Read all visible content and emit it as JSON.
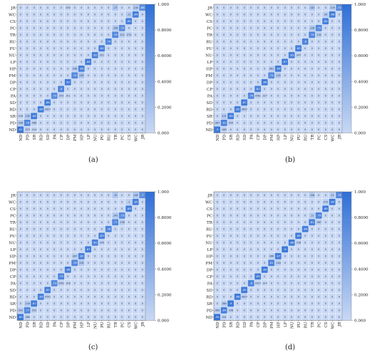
{
  "labels": [
    "ND",
    "PD",
    "SR",
    "RD",
    "SD",
    "PA",
    "CP",
    "DP",
    "PM",
    "HP",
    "LP",
    "NU",
    "PU",
    "RU",
    "TR",
    "PC",
    "CS",
    "WC",
    "JR"
  ],
  "colorbar_ticks": [
    "0.000",
    "0.2000",
    "0.4000",
    "0.6000",
    "0.8000",
    "1.000"
  ],
  "colors": {
    "low": "#c8d8f4",
    "high": "#2f6fd6"
  },
  "captions": [
    "(a)",
    "(b)",
    "(c)",
    "(d)"
  ],
  "chart_data": [
    {
      "type": "heatmap",
      "title": "",
      "xlabel": "",
      "ylabel": "",
      "vlim": [
        0,
        1
      ],
      "diagonal": [
        0.91,
        0.78,
        0.88,
        0.84,
        0.86,
        0.72,
        0.8,
        0.87,
        0.75,
        0.83,
        0.88,
        0.82,
        0.84,
        0.79,
        0.76,
        0.72,
        0.85,
        0.84,
        0.68
      ],
      "off_diagonal": [
        {
          "row": "ND",
          "col": "PD",
          "value": 0.073
        },
        {
          "row": "ND",
          "col": "SR",
          "value": 0.014
        },
        {
          "row": "PD",
          "col": "ND",
          "value": 0.098
        },
        {
          "row": "PD",
          "col": "SR",
          "value": 0.066
        },
        {
          "row": "SR",
          "col": "PD",
          "value": 0.128
        },
        {
          "row": "SR",
          "col": "ND",
          "value": 0.018
        },
        {
          "row": "RD",
          "col": "SD",
          "value": 0.0627
        },
        {
          "row": "PA",
          "col": "CP",
          "value": 0.053
        },
        {
          "row": "PA",
          "col": "DP",
          "value": 0.011
        },
        {
          "row": "PM",
          "col": "HP",
          "value": 0.167
        },
        {
          "row": "HP",
          "col": "PM",
          "value": 0.096
        },
        {
          "row": "NU",
          "col": "PU",
          "value": 0.051
        },
        {
          "row": "TR",
          "col": "CS",
          "value": 0.074
        },
        {
          "row": "TR",
          "col": "PC",
          "value": 0.112
        },
        {
          "row": "PC",
          "col": "TR",
          "value": 0.156
        },
        {
          "row": "WC",
          "col": "CS",
          "value": 0.11
        },
        {
          "row": "JR",
          "col": "WC",
          "value": 0.144
        },
        {
          "row": "JR",
          "col": "TR",
          "value": 0.17
        },
        {
          "row": "JR",
          "col": "DP",
          "value": 0.033
        }
      ]
    },
    {
      "type": "heatmap",
      "title": "",
      "xlabel": "",
      "ylabel": "",
      "vlim": [
        0,
        1
      ],
      "diagonal": [
        0.9,
        0.82,
        0.86,
        0.85,
        0.87,
        0.76,
        0.81,
        0.86,
        0.74,
        0.84,
        0.87,
        0.83,
        0.85,
        0.8,
        0.78,
        0.75,
        0.84,
        0.86,
        0.71
      ],
      "off_diagonal": [
        {
          "row": "ND",
          "col": "PD",
          "value": 0.065
        },
        {
          "row": "PD",
          "col": "ND",
          "value": 0.087
        },
        {
          "row": "PD",
          "col": "SR",
          "value": 0.044
        },
        {
          "row": "SR",
          "col": "PD",
          "value": 0.121
        },
        {
          "row": "RD",
          "col": "SD",
          "value": 0.0627
        },
        {
          "row": "PA",
          "col": "CP",
          "value": 0.0561
        },
        {
          "row": "PA",
          "col": "DP",
          "value": 0.027
        },
        {
          "row": "PM",
          "col": "HP",
          "value": 0.132
        },
        {
          "row": "HP",
          "col": "PM",
          "value": 0.081
        },
        {
          "row": "NU",
          "col": "PU",
          "value": 0.047
        },
        {
          "row": "TR",
          "col": "PC",
          "value": 0.102
        },
        {
          "row": "PC",
          "col": "TR",
          "value": 0.128
        },
        {
          "row": "WC",
          "col": "CS",
          "value": 0.09
        },
        {
          "row": "JR",
          "col": "WC",
          "value": 0.116
        },
        {
          "row": "JR",
          "col": "TR",
          "value": 0.142
        }
      ]
    },
    {
      "type": "heatmap",
      "title": "",
      "xlabel": "",
      "ylabel": "",
      "vlim": [
        0,
        1
      ],
      "diagonal": [
        0.89,
        0.77,
        0.87,
        0.83,
        0.85,
        0.73,
        0.79,
        0.86,
        0.76,
        0.82,
        0.87,
        0.81,
        0.83,
        0.78,
        0.77,
        0.73,
        0.84,
        0.85,
        0.7
      ],
      "off_diagonal": [
        {
          "row": "ND",
          "col": "PD",
          "value": 0.066
        },
        {
          "row": "PD",
          "col": "ND",
          "value": 0.091
        },
        {
          "row": "PD",
          "col": "SR",
          "value": 0.052
        },
        {
          "row": "SR",
          "col": "PD",
          "value": 0.118
        },
        {
          "row": "RD",
          "col": "SD",
          "value": 0.0591
        },
        {
          "row": "PA",
          "col": "CP",
          "value": 0.0561
        },
        {
          "row": "PA",
          "col": "DP",
          "value": 0.018
        },
        {
          "row": "PM",
          "col": "HP",
          "value": 0.151
        },
        {
          "row": "HP",
          "col": "PM",
          "value": 0.087
        },
        {
          "row": "NU",
          "col": "PU",
          "value": 0.049
        },
        {
          "row": "TR",
          "col": "PC",
          "value": 0.108
        },
        {
          "row": "PC",
          "col": "TR",
          "value": 0.141
        },
        {
          "row": "WC",
          "col": "CS",
          "value": 0.1
        },
        {
          "row": "JR",
          "col": "WC",
          "value": 0.162
        },
        {
          "row": "JR",
          "col": "TR",
          "value": 0.15
        }
      ]
    },
    {
      "type": "heatmap",
      "title": "",
      "xlabel": "",
      "ylabel": "",
      "vlim": [
        0,
        1
      ],
      "diagonal": [
        0.94,
        0.84,
        0.9,
        0.88,
        0.89,
        0.8,
        0.85,
        0.89,
        0.81,
        0.87,
        0.9,
        0.86,
        0.88,
        0.84,
        0.82,
        0.79,
        0.88,
        0.89,
        0.76
      ],
      "off_diagonal": [
        {
          "row": "ND",
          "col": "PD",
          "value": 0.041
        },
        {
          "row": "PD",
          "col": "ND",
          "value": 0.063
        },
        {
          "row": "PD",
          "col": "SR",
          "value": 0.038
        },
        {
          "row": "SR",
          "col": "PD",
          "value": 0.084
        },
        {
          "row": "RD",
          "col": "SD",
          "value": 0.0627
        },
        {
          "row": "PA",
          "col": "CP",
          "value": 0.0427
        },
        {
          "row": "PA",
          "col": "DP",
          "value": 0.014
        },
        {
          "row": "PM",
          "col": "HP",
          "value": 0.104
        },
        {
          "row": "HP",
          "col": "PM",
          "value": 0.066
        },
        {
          "row": "NU",
          "col": "PU",
          "value": 0.038
        },
        {
          "row": "TR",
          "col": "PC",
          "value": 0.087
        },
        {
          "row": "PC",
          "col": "TR",
          "value": 0.11
        },
        {
          "row": "WC",
          "col": "CS",
          "value": 0.072
        },
        {
          "row": "JR",
          "col": "WC",
          "value": 0.11
        },
        {
          "row": "JR",
          "col": "TR",
          "value": 0.126
        }
      ]
    }
  ]
}
